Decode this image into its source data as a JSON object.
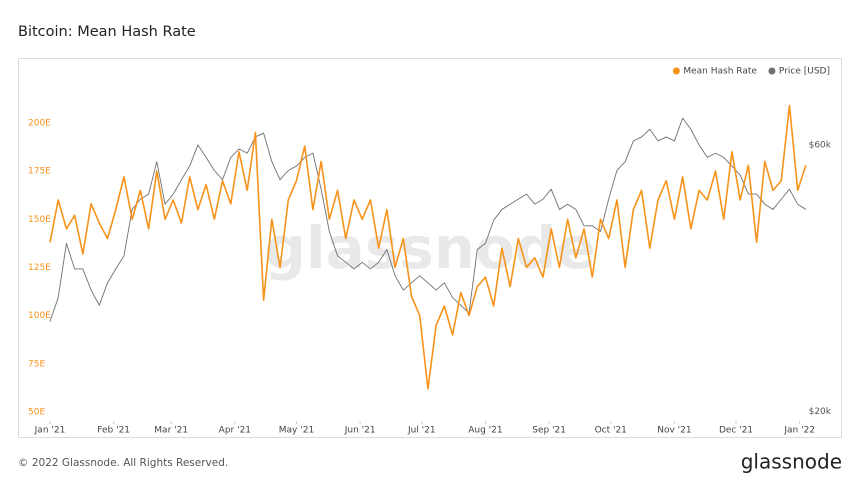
{
  "chart_data": {
    "type": "line",
    "title": "Bitcoin: Mean Hash Rate",
    "watermark": "glassnode",
    "footer": "© 2022 Glassnode. All Rights Reserved.",
    "brand": "glassnode",
    "x": [
      0,
      4,
      8,
      12,
      16,
      20,
      24,
      28,
      32,
      36,
      40,
      44,
      48,
      52,
      56,
      60,
      64,
      68,
      72,
      76,
      80,
      84,
      88,
      92,
      96,
      100,
      104,
      108,
      112,
      116,
      120,
      124,
      128,
      132,
      136,
      140,
      144,
      148,
      152,
      156,
      160,
      164,
      168,
      172,
      176,
      180,
      184,
      188,
      192,
      196,
      200,
      204,
      208,
      212,
      216,
      220,
      224,
      228,
      232,
      236,
      240,
      244,
      248,
      252,
      256,
      260,
      264,
      268,
      272,
      276,
      280,
      284,
      288,
      292,
      296,
      300,
      304,
      308,
      312,
      316,
      320,
      324,
      328,
      332,
      336,
      340,
      344,
      348,
      352,
      356,
      360,
      364,
      368
    ],
    "series": [
      {
        "name": "Mean Hash Rate",
        "color": "#f7931a",
        "axis": "y",
        "values": [
          138,
          160,
          145,
          152,
          132,
          158,
          148,
          140,
          155,
          172,
          150,
          165,
          145,
          175,
          150,
          160,
          148,
          172,
          155,
          168,
          150,
          170,
          158,
          185,
          165,
          195,
          108,
          150,
          125,
          160,
          170,
          188,
          155,
          180,
          150,
          165,
          140,
          160,
          150,
          160,
          135,
          155,
          125,
          140,
          110,
          100,
          62,
          95,
          105,
          90,
          112,
          100,
          115,
          120,
          105,
          135,
          115,
          140,
          125,
          130,
          120,
          145,
          125,
          150,
          130,
          145,
          120,
          150,
          140,
          160,
          125,
          155,
          165,
          135,
          160,
          170,
          150,
          172,
          145,
          165,
          160,
          175,
          150,
          185,
          160,
          178,
          138,
          180,
          165,
          170,
          209,
          165,
          178
        ]
      },
      {
        "name": "Price [USD]",
        "color": "#707070",
        "axis": "y2",
        "values": [
          29000,
          32000,
          40000,
          36000,
          36000,
          33000,
          31000,
          34000,
          36000,
          38000,
          46000,
          48000,
          49000,
          56000,
          47000,
          49000,
          52000,
          55000,
          60000,
          57000,
          54000,
          52000,
          57000,
          59000,
          58000,
          62000,
          63000,
          56000,
          52000,
          54000,
          55000,
          57000,
          58000,
          50000,
          42000,
          38000,
          37000,
          36000,
          37000,
          36000,
          37000,
          39000,
          35000,
          33000,
          34000,
          35000,
          34000,
          33000,
          34000,
          32000,
          31000,
          30000,
          39000,
          40000,
          44000,
          46000,
          47000,
          48000,
          49000,
          47000,
          48000,
          50000,
          46000,
          47000,
          46000,
          43000,
          43000,
          42000,
          48000,
          54000,
          56000,
          61000,
          62000,
          64000,
          61000,
          62000,
          61000,
          67000,
          64000,
          60000,
          57000,
          58000,
          57000,
          55000,
          53000,
          49000,
          49000,
          47000,
          46000,
          48000,
          50000,
          47000,
          46000
        ]
      }
    ],
    "xlim": [
      0,
      370
    ],
    "xticks": [
      {
        "value": 0,
        "label": "Jan '21"
      },
      {
        "value": 31,
        "label": "Feb '21"
      },
      {
        "value": 59,
        "label": "Mar '21"
      },
      {
        "value": 90,
        "label": "Apr '21"
      },
      {
        "value": 120,
        "label": "May '21"
      },
      {
        "value": 151,
        "label": "Jun '21"
      },
      {
        "value": 181,
        "label": "Jul '21"
      },
      {
        "value": 212,
        "label": "Aug '21"
      },
      {
        "value": 243,
        "label": "Sep '21"
      },
      {
        "value": 273,
        "label": "Oct '21"
      },
      {
        "value": 304,
        "label": "Nov '21"
      },
      {
        "value": 334,
        "label": "Dec '21"
      },
      {
        "value": 365,
        "label": "Jan '22"
      }
    ],
    "ylim": [
      45,
      215
    ],
    "yticks": [
      {
        "value": 50,
        "label": "50E"
      },
      {
        "value": 75,
        "label": "75E"
      },
      {
        "value": 100,
        "label": "100E"
      },
      {
        "value": 125,
        "label": "125E"
      },
      {
        "value": 150,
        "label": "150E"
      },
      {
        "value": 175,
        "label": "175E"
      },
      {
        "value": 200,
        "label": "200E"
      }
    ],
    "y2lim": [
      19200,
      74000
    ],
    "y2_log": true,
    "y2ticks": [
      {
        "value": 20000,
        "label": "$20k"
      },
      {
        "value": 60000,
        "label": "$60k"
      }
    ],
    "legend": "top-right"
  }
}
